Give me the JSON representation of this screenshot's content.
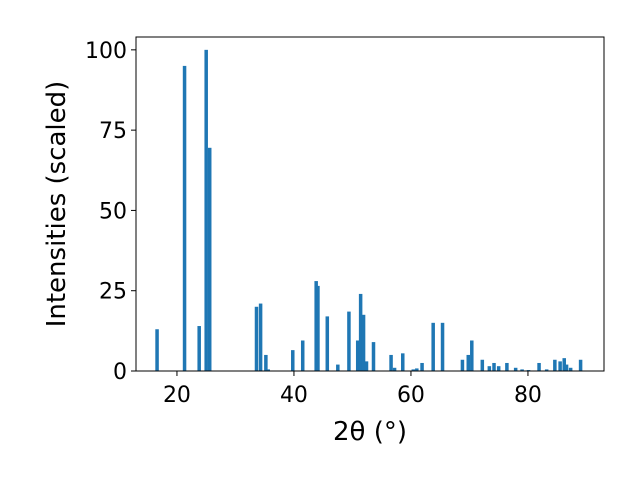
{
  "chart_data": {
    "type": "bar",
    "title": "",
    "xlabel": "2θ (°)",
    "ylabel": "Intensities (scaled)",
    "xlim": [
      13,
      93
    ],
    "ylim": [
      0,
      104
    ],
    "xticks": [
      20,
      40,
      60,
      80
    ],
    "yticks": [
      0,
      25,
      50,
      75,
      100
    ],
    "grid": false,
    "bar_width": 0.6,
    "bar_color": "#1f77b4",
    "x": [
      16.6,
      21.3,
      23.8,
      25.0,
      25.6,
      33.6,
      34.3,
      35.2,
      35.6,
      39.8,
      41.5,
      43.8,
      44.1,
      45.7,
      47.5,
      49.4,
      50.9,
      51.4,
      51.9,
      52.4,
      53.6,
      56.6,
      57.2,
      58.6,
      60.4,
      61.0,
      61.9,
      63.8,
      65.4,
      68.8,
      69.8,
      70.4,
      72.2,
      73.4,
      74.2,
      75.0,
      76.4,
      77.9,
      79.0,
      80.1,
      81.9,
      83.2,
      84.6,
      85.5,
      86.2,
      86.6,
      87.3,
      89.0
    ],
    "values": [
      13.0,
      95.0,
      14.0,
      100.0,
      69.5,
      20.0,
      21.0,
      5.0,
      0.5,
      6.5,
      9.5,
      28.0,
      26.5,
      17.0,
      2.0,
      18.5,
      9.5,
      24.0,
      17.5,
      3.0,
      9.0,
      5.0,
      1.0,
      5.5,
      0.5,
      0.8,
      2.5,
      15.0,
      15.0,
      3.5,
      5.0,
      9.5,
      3.5,
      1.5,
      2.5,
      1.5,
      2.5,
      1.0,
      0.5,
      0.3,
      2.5,
      0.5,
      3.5,
      3.0,
      4.0,
      2.0,
      1.0,
      3.5
    ]
  }
}
